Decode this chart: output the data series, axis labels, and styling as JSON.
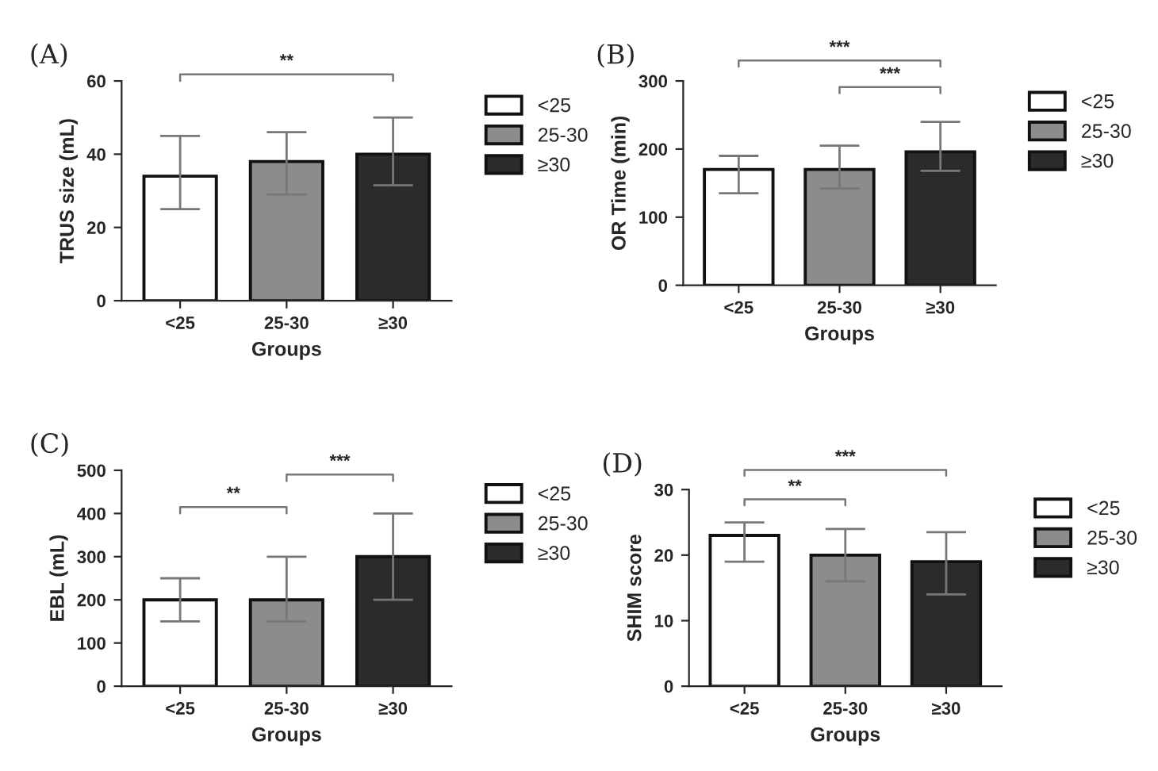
{
  "chart_data": [
    {
      "type": "bar",
      "title": "(A)",
      "xlabel": "Groups",
      "ylabel": "TRUS size (mL)",
      "categories": [
        "<25",
        "25-30",
        "≥30"
      ],
      "ylim": [
        0,
        60
      ],
      "yticks": [
        0,
        20,
        40,
        60
      ],
      "legend": "right",
      "annotations": [
        "**"
      ],
      "series": [
        {
          "name": "<25",
          "color": "#ffffff",
          "values": [
            34,
            null,
            null
          ],
          "errors": [
            [
              25,
              45
            ],
            null,
            null
          ]
        },
        {
          "name": "25-30",
          "color": "#8c8c8c",
          "values": [
            null,
            38,
            null
          ],
          "errors": [
            null,
            [
              29,
              46
            ],
            null
          ]
        },
        {
          "name": "≥30",
          "color": "#2b2b2b",
          "values": [
            null,
            null,
            40
          ],
          "errors": [
            null,
            null,
            [
              31.5,
              50
            ]
          ]
        }
      ]
    },
    {
      "type": "bar",
      "title": "(B)",
      "xlabel": "Groups",
      "ylabel": "OR Time (min)",
      "categories": [
        "<25",
        "25-30",
        "≥30"
      ],
      "ylim": [
        0,
        300
      ],
      "yticks": [
        0,
        100,
        200,
        300
      ],
      "legend": "right",
      "annotations": [
        "***",
        "***"
      ],
      "series": [
        {
          "name": "<25",
          "color": "#ffffff",
          "values": [
            170,
            null,
            null
          ],
          "errors": [
            [
              135,
              190
            ],
            null,
            null
          ]
        },
        {
          "name": "25-30",
          "color": "#8c8c8c",
          "values": [
            null,
            170,
            null
          ],
          "errors": [
            null,
            [
              142,
              205
            ],
            null
          ]
        },
        {
          "name": "≥30",
          "color": "#2b2b2b",
          "values": [
            null,
            null,
            196
          ],
          "errors": [
            null,
            null,
            [
              168,
              240
            ]
          ]
        }
      ]
    },
    {
      "type": "bar",
      "title": "(C)",
      "xlabel": "Groups",
      "ylabel": "EBL (mL)",
      "categories": [
        "<25",
        "25-30",
        "≥30"
      ],
      "ylim": [
        0,
        500
      ],
      "yticks": [
        0,
        100,
        200,
        300,
        400,
        500
      ],
      "legend": "right",
      "annotations": [
        "**",
        "***"
      ],
      "series": [
        {
          "name": "<25",
          "color": "#ffffff",
          "values": [
            200,
            null,
            null
          ],
          "errors": [
            [
              150,
              250
            ],
            null,
            null
          ]
        },
        {
          "name": "25-30",
          "color": "#8c8c8c",
          "values": [
            null,
            200,
            null
          ],
          "errors": [
            null,
            [
              150,
              300
            ],
            null
          ]
        },
        {
          "name": "≥30",
          "color": "#2b2b2b",
          "values": [
            null,
            null,
            300
          ],
          "errors": [
            null,
            null,
            [
              200,
              400
            ]
          ]
        }
      ]
    },
    {
      "type": "bar",
      "title": "(D)",
      "xlabel": "Groups",
      "ylabel": "SHIM score",
      "categories": [
        "<25",
        "25-30",
        "≥30"
      ],
      "ylim": [
        0,
        30
      ],
      "yticks": [
        0,
        10,
        20,
        30
      ],
      "legend": "right",
      "annotations": [
        "**",
        "***"
      ],
      "series": [
        {
          "name": "<25",
          "color": "#ffffff",
          "values": [
            23,
            null,
            null
          ],
          "errors": [
            [
              19,
              25
            ],
            null,
            null
          ]
        },
        {
          "name": "25-30",
          "color": "#8c8c8c",
          "values": [
            null,
            20,
            null
          ],
          "errors": [
            null,
            [
              16,
              24
            ],
            null
          ]
        },
        {
          "name": "≥30",
          "color": "#2b2b2b",
          "values": [
            null,
            null,
            19
          ],
          "errors": [
            null,
            null,
            [
              14,
              23.5
            ]
          ]
        }
      ]
    }
  ]
}
